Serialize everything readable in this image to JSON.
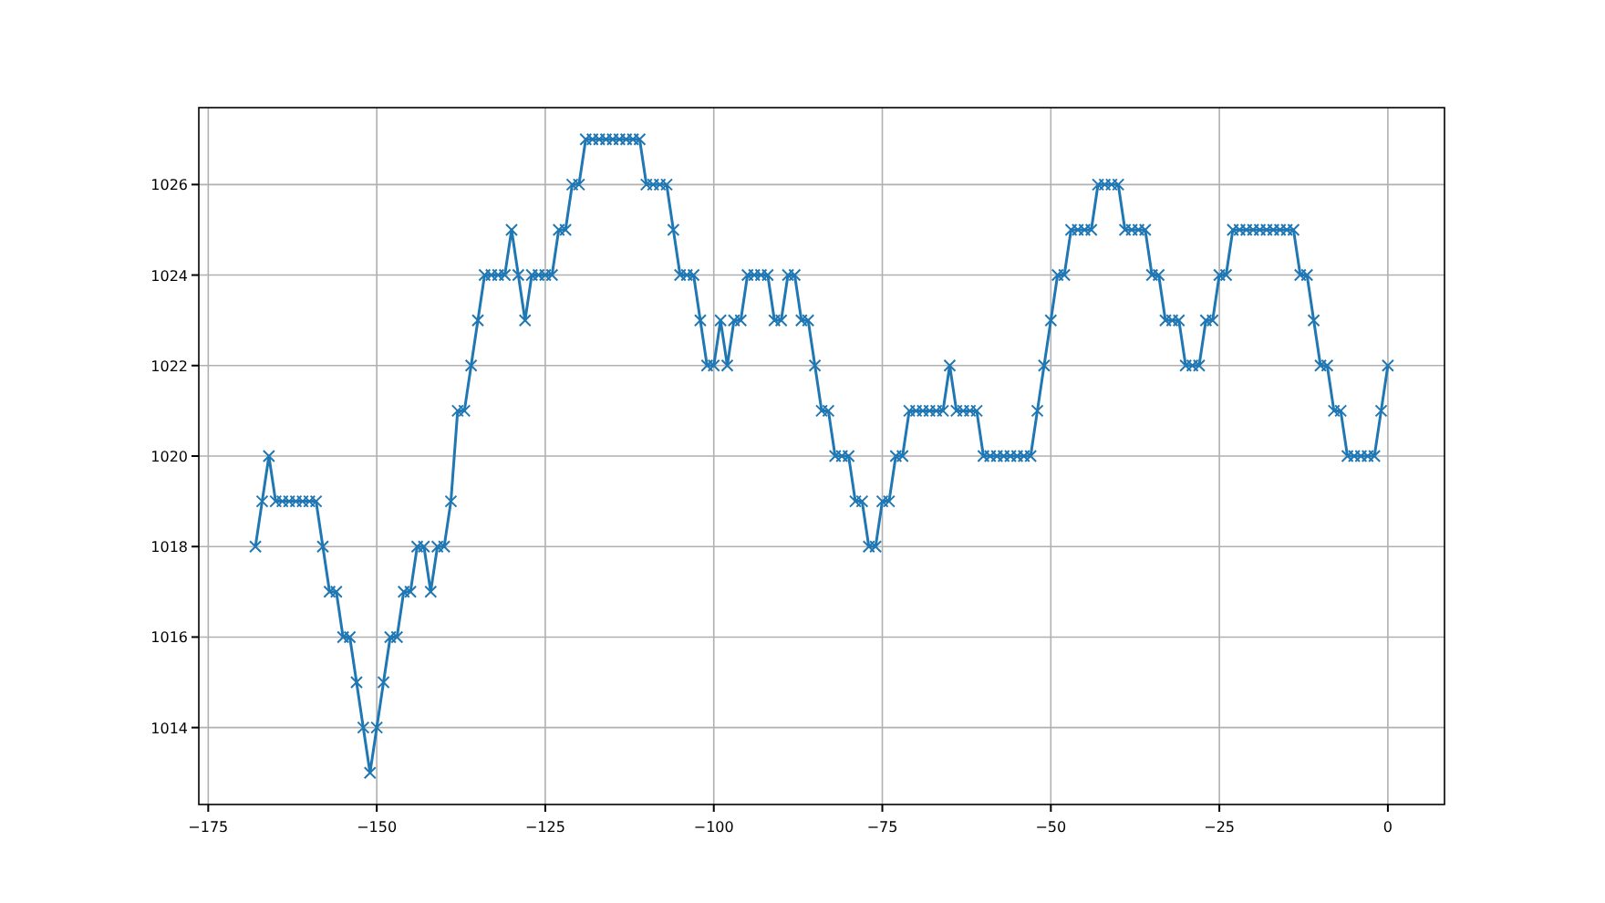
{
  "chart_data": {
    "type": "line",
    "marker": "cross",
    "line_style": "solid",
    "grid": true,
    "xlim": [
      -176.4,
      8.4
    ],
    "xticks": [
      {
        "value": -175,
        "label": "−175"
      },
      {
        "value": -150,
        "label": "−150"
      },
      {
        "value": -125,
        "label": "−125"
      },
      {
        "value": -100,
        "label": "−100"
      },
      {
        "value": -75,
        "label": "−75"
      },
      {
        "value": -50,
        "label": "−50"
      },
      {
        "value": -25,
        "label": "−25"
      },
      0
    ],
    "ylim": [
      1012.3,
      1027.7
    ],
    "yticks": [
      1014,
      1016,
      1018,
      1020,
      1022,
      1024,
      1026
    ],
    "x": [
      -168,
      -167,
      -166,
      -165,
      -164,
      -163,
      -162,
      -161,
      -160,
      -159,
      -158,
      -157,
      -156,
      -155,
      -154,
      -153,
      -152,
      -151,
      -150,
      -149,
      -148,
      -147,
      -146,
      -145,
      -144,
      -143,
      -142,
      -141,
      -140,
      -139,
      -138,
      -137,
      -136,
      -135,
      -134,
      -133,
      -132,
      -131,
      -130,
      -129,
      -128,
      -127,
      -126,
      -125,
      -124,
      -123,
      -122,
      -121,
      -120,
      -119,
      -118,
      -117,
      -116,
      -115,
      -114,
      -113,
      -112,
      -111,
      -110,
      -109,
      -108,
      -107,
      -106,
      -105,
      -104,
      -103,
      -102,
      -101,
      -100,
      -99,
      -98,
      -97,
      -96,
      -95,
      -94,
      -93,
      -92,
      -91,
      -90,
      -89,
      -88,
      -87,
      -86,
      -85,
      -84,
      -83,
      -82,
      -81,
      -80,
      -79,
      -78,
      -77,
      -76,
      -75,
      -74,
      -73,
      -72,
      -71,
      -70,
      -69,
      -68,
      -67,
      -66,
      -65,
      -64,
      -63,
      -62,
      -61,
      -60,
      -59,
      -58,
      -57,
      -56,
      -55,
      -54,
      -53,
      -52,
      -51,
      -50,
      -49,
      -48,
      -47,
      -46,
      -45,
      -44,
      -43,
      -42,
      -41,
      -40,
      -39,
      -38,
      -37,
      -36,
      -35,
      -34,
      -33,
      -32,
      -31,
      -30,
      -29,
      -28,
      -27,
      -26,
      -25,
      -24,
      -23,
      -22,
      -21,
      -20,
      -19,
      -18,
      -17,
      -16,
      -15,
      -14,
      -13,
      -12,
      -11,
      -10,
      -9,
      -8,
      -7,
      -6,
      -5,
      -4,
      -3,
      -2,
      -1,
      0
    ],
    "series": [
      {
        "color": "#1f77b4",
        "values": [
          1018,
          1019,
          1020,
          1019,
          1019,
          1019,
          1019,
          1019,
          1019,
          1019,
          1018,
          1017,
          1017,
          1016,
          1016,
          1015,
          1014,
          1013,
          1014,
          1015,
          1016,
          1016,
          1017,
          1017,
          1018,
          1018,
          1017,
          1018,
          1018,
          1019,
          1021,
          1021,
          1022,
          1023,
          1024,
          1024,
          1024,
          1024,
          1025,
          1024,
          1023,
          1024,
          1024,
          1024,
          1024,
          1025,
          1025,
          1026,
          1026,
          1027,
          1027,
          1027,
          1027,
          1027,
          1027,
          1027,
          1027,
          1027,
          1026,
          1026,
          1026,
          1026,
          1025,
          1024,
          1024,
          1024,
          1023,
          1022,
          1022,
          1023,
          1022,
          1023,
          1023,
          1024,
          1024,
          1024,
          1024,
          1023,
          1023,
          1024,
          1024,
          1023,
          1023,
          1022,
          1021,
          1021,
          1020,
          1020,
          1020,
          1019,
          1019,
          1018,
          1018,
          1019,
          1019,
          1020,
          1020,
          1021,
          1021,
          1021,
          1021,
          1021,
          1021,
          1022,
          1021,
          1021,
          1021,
          1021,
          1020,
          1020,
          1020,
          1020,
          1020,
          1020,
          1020,
          1020,
          1021,
          1022,
          1023,
          1024,
          1024,
          1025,
          1025,
          1025,
          1025,
          1026,
          1026,
          1026,
          1026,
          1025,
          1025,
          1025,
          1025,
          1024,
          1024,
          1023,
          1023,
          1023,
          1022,
          1022,
          1022,
          1023,
          1023,
          1024,
          1024,
          1025,
          1025,
          1025,
          1025,
          1025,
          1025,
          1025,
          1025,
          1025,
          1025,
          1024,
          1024,
          1023,
          1022,
          1022,
          1021,
          1021,
          1020,
          1020,
          1020,
          1020,
          1020,
          1021,
          1022
        ]
      }
    ]
  }
}
